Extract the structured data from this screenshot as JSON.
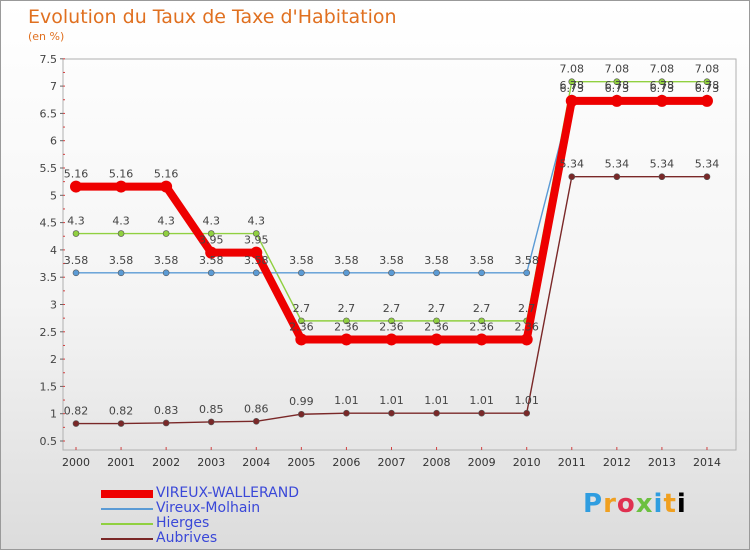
{
  "title": "Evolution du Taux de Taxe d'Habitation",
  "subtitle": "(en %)",
  "logo": "Proxiti",
  "logo_chars": [
    "P",
    "r",
    "o",
    "x",
    "i",
    "t",
    "i"
  ],
  "chart_data": {
    "type": "line",
    "title": "Evolution du Taux de Taxe d'Habitation",
    "ylabel": "(en %)",
    "xlabel": "",
    "ylim": [
      0.5,
      7.5
    ],
    "yticks": [
      "0.5",
      "1",
      "1.5",
      "2",
      "2.5",
      "3",
      "3.5",
      "4",
      "4.5",
      "5",
      "5.5",
      "6",
      "6.5",
      "7",
      "7.5"
    ],
    "categories": [
      "2000",
      "2001",
      "2002",
      "2003",
      "2004",
      "2005",
      "2006",
      "2007",
      "2008",
      "2009",
      "2010",
      "2011",
      "2012",
      "2013",
      "2014"
    ],
    "series": [
      {
        "name": "Hierges",
        "color": "#90d040",
        "values": [
          4.3,
          4.3,
          4.3,
          4.3,
          4.3,
          2.7,
          2.7,
          2.7,
          2.7,
          2.7,
          2.7,
          7.08,
          7.08,
          7.08,
          7.08
        ],
        "labels": [
          "4.3",
          "4.3",
          "4.3",
          "4.3",
          "4.3",
          "2.7",
          "2.7",
          "2.7",
          "2.7",
          "2.7",
          "2.7",
          "7.08",
          "7.08",
          "7.08",
          "7.08"
        ]
      },
      {
        "name": "Vireux-Molhain",
        "color": "#5b9bd5",
        "values": [
          3.58,
          3.58,
          3.58,
          3.58,
          3.58,
          3.58,
          3.58,
          3.58,
          3.58,
          3.58,
          3.58,
          6.78,
          6.78,
          6.78,
          6.78
        ],
        "labels": [
          "3.58",
          "3.58",
          "3.58",
          "3.58",
          "3.58",
          "3.58",
          "3.58",
          "3.58",
          "3.58",
          "3.58",
          "3.58",
          "6.78",
          "6.78",
          "6.78",
          "6.78"
        ]
      },
      {
        "name": "Aubrives",
        "color": "#7a2828",
        "values": [
          0.82,
          0.82,
          0.83,
          0.85,
          0.86,
          0.99,
          1.01,
          1.01,
          1.01,
          1.01,
          1.01,
          5.34,
          5.34,
          5.34,
          5.34
        ],
        "labels": [
          "0.82",
          "0.82",
          "0.83",
          "0.85",
          "0.86",
          "0.99",
          "1.01",
          "1.01",
          "1.01",
          "1.01",
          "1.01",
          "5.34",
          "5.34",
          "5.34",
          "5.34"
        ]
      },
      {
        "name": "VIREUX-WALLERAND",
        "color": "#ee0000",
        "values": [
          5.16,
          5.16,
          5.16,
          3.95,
          3.95,
          2.36,
          2.36,
          2.36,
          2.36,
          2.36,
          2.36,
          6.73,
          6.73,
          6.73,
          6.73
        ],
        "labels": [
          "5.16",
          "5.16",
          "5.16",
          "3.95",
          "3.95",
          "2.36",
          "2.36",
          "2.36",
          "2.36",
          "2.36",
          "2.36",
          "6.73",
          "6.73",
          "6.73",
          "6.73"
        ]
      }
    ],
    "legend": [
      {
        "name": "VIREUX-WALLERAND",
        "color": "#ee0000"
      },
      {
        "name": "Vireux-Molhain",
        "color": "#5b9bd5"
      },
      {
        "name": "Hierges",
        "color": "#90d040"
      },
      {
        "name": "Aubrives",
        "color": "#7a2828"
      }
    ]
  }
}
